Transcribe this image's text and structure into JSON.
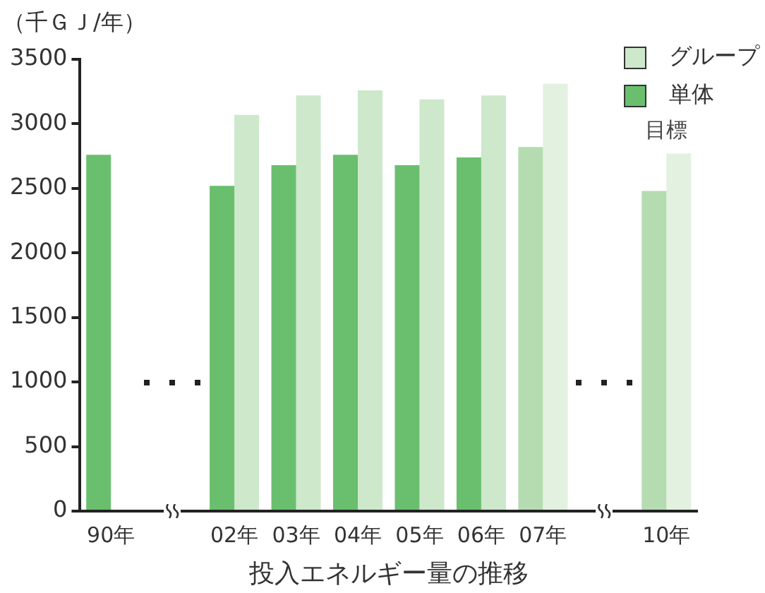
{
  "chart_data": {
    "type": "bar",
    "ylabel": "（千ＧＪ/年）",
    "xlabel": "投入エネルギー量の推移",
    "categories": [
      "90年",
      null,
      "02年",
      "03年",
      "04年",
      "05年",
      "06年",
      "07年",
      null,
      "10年"
    ],
    "series": [
      {
        "name": "単体",
        "colors": [
          "#6abf6e",
          "#6abf6e",
          "#6abf6e",
          "#6abf6e",
          "#6abf6e",
          "#6abf6e",
          "#6abf6e",
          "#b5dcb0",
          "#b5dcb0",
          "#b5dcb0"
        ],
        "values": [
          2760,
          null,
          2520,
          2680,
          2760,
          2680,
          2740,
          2820,
          null,
          2480
        ]
      },
      {
        "name": "グループ",
        "colors": [
          "#cde8cb",
          "#cde8cb",
          "#cde8cb",
          "#cde8cb",
          "#cde8cb",
          "#cde8cb",
          "#cde8cb",
          "#e2f1e0",
          "#e2f1e0",
          "#e2f1e0"
        ],
        "values": [
          null,
          null,
          3070,
          3220,
          3260,
          3190,
          3220,
          3310,
          null,
          2770
        ]
      }
    ],
    "ylim": [
      0,
      3500
    ],
    "yticks": [
      0,
      500,
      1000,
      1500,
      2000,
      2500,
      3000,
      3500
    ],
    "grid": false,
    "legend": "top right",
    "annotations": [
      {
        "text": "目標",
        "x": "10年",
        "y": 2770
      }
    ]
  }
}
